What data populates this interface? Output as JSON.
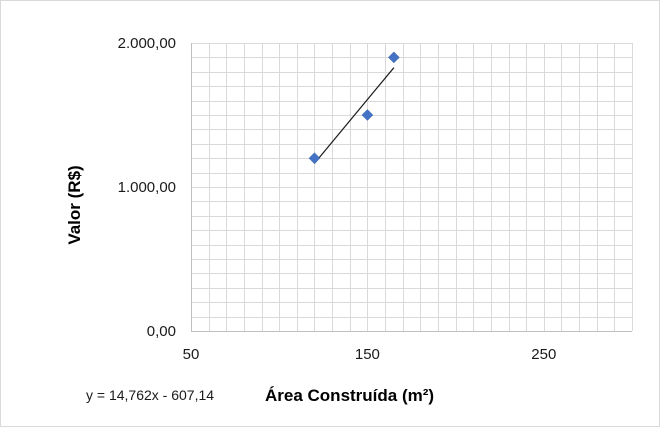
{
  "chart_data": {
    "type": "scatter",
    "title": "",
    "xlabel": "Área Construída (m²)",
    "ylabel": "Valor (R$)",
    "xlim": [
      50,
      300
    ],
    "ylim": [
      0,
      2000
    ],
    "x_ticks": [
      {
        "value": 50,
        "label": "50"
      },
      {
        "value": 150,
        "label": "150"
      },
      {
        "value": 250,
        "label": "250"
      }
    ],
    "y_ticks": [
      {
        "value": 0,
        "label": "0,00"
      },
      {
        "value": 1000,
        "label": "1.000,00"
      },
      {
        "value": 2000,
        "label": "2.000,00"
      }
    ],
    "x_minor_step": 10,
    "y_minor_step": 100,
    "grid": true,
    "legend": "none",
    "marker": "diamond",
    "point_color": "#4472c4",
    "series": [
      {
        "points": [
          {
            "x": 120,
            "y": 1200
          },
          {
            "x": 150,
            "y": 1500
          },
          {
            "x": 165,
            "y": 1900
          }
        ]
      }
    ],
    "trendline": {
      "type": "linear",
      "slope": 14.762,
      "intercept": -607.14,
      "x_range": [
        120,
        165
      ],
      "equation_label": "y = 14,762x - 607,14",
      "color": "#1a1a1a"
    }
  }
}
